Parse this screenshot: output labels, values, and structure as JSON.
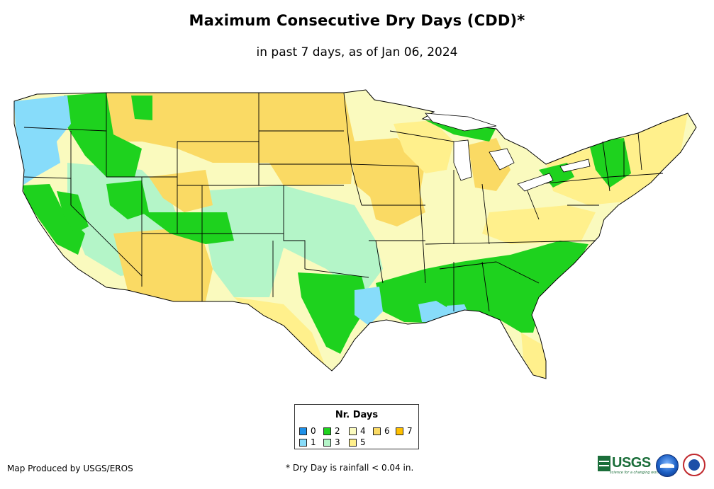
{
  "title": "Maximum Consecutive Dry Days (CDD)*",
  "subtitle": "in past 7 days, as of Jan 06, 2024",
  "legend": {
    "title": "Nr. Days",
    "items": [
      {
        "label": "0",
        "color": "#1e90e8"
      },
      {
        "label": "1",
        "color": "#87dcfa"
      },
      {
        "label": "2",
        "color": "#1ed21e"
      },
      {
        "label": "3",
        "color": "#b4f5c8"
      },
      {
        "label": "4",
        "color": "#fafabe"
      },
      {
        "label": "5",
        "color": "#fff08c"
      },
      {
        "label": "6",
        "color": "#fada64"
      },
      {
        "label": "7",
        "color": "#ffc000"
      }
    ]
  },
  "credit": "Map Produced by USGS/EROS",
  "footnote": "* Dry Day is rainfall < 0.04 in.",
  "logos": {
    "usgs": "USGS",
    "usgs_tagline": "science for a changing world",
    "noaa": "noaa-logo",
    "nws": "nws-logo"
  },
  "regions": [
    {
      "name": "pacific-northwest-coast",
      "days": 1
    },
    {
      "name": "cascades",
      "days": 2
    },
    {
      "name": "northern-rockies",
      "days": 6
    },
    {
      "name": "northern-plains",
      "days": 4
    },
    {
      "name": "upper-midwest",
      "days": 5
    },
    {
      "name": "great-lakes",
      "days": 4
    },
    {
      "name": "northeast",
      "days": 5
    },
    {
      "name": "california-coast",
      "days": 2
    },
    {
      "name": "great-basin",
      "days": 3
    },
    {
      "name": "southwest-desert",
      "days": 6
    },
    {
      "name": "southern-plains",
      "days": 3
    },
    {
      "name": "east-texas",
      "days": 2
    },
    {
      "name": "gulf-coast",
      "days": 1
    },
    {
      "name": "southeast",
      "days": 2
    },
    {
      "name": "mid-atlantic",
      "days": 4
    },
    {
      "name": "florida-peninsula",
      "days": 5
    }
  ]
}
